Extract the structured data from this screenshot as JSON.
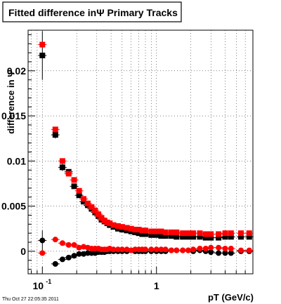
{
  "chart_data": {
    "type": "scatter",
    "title": "Fitted difference inΨ   Primary Tracks",
    "xlabel": "pT (GeV/c)",
    "ylabel": "difference in Ψ",
    "x_scale": "log",
    "xlim": [
      0.075,
      7.0
    ],
    "ylim": [
      -0.0025,
      0.0245
    ],
    "y_ticks": [
      0,
      0.005,
      0.01,
      0.015,
      0.02
    ],
    "y_tick_labels": [
      "0",
      "0.005",
      "0.01",
      "0.015",
      "0.02"
    ],
    "x_ticks": [
      0.1,
      1
    ],
    "x_tick_labels": [
      "10^-1",
      "1"
    ],
    "grid": true,
    "footer": "Thu Oct 27 22:05:35 2011",
    "series": [
      {
        "color": "#000000",
        "marker": "square",
        "x": [
          0.1,
          0.13,
          0.15,
          0.17,
          0.19,
          0.21,
          0.23,
          0.25,
          0.27,
          0.29,
          0.31,
          0.33,
          0.35,
          0.37,
          0.39,
          0.42,
          0.46,
          0.5,
          0.55,
          0.6,
          0.65,
          0.7,
          0.75,
          0.8,
          0.9,
          1.0,
          1.1,
          1.2,
          1.35,
          1.5,
          1.7,
          1.9,
          2.1,
          2.4,
          2.7,
          3.0,
          3.5,
          4.0,
          4.5,
          5.5,
          6.5
        ],
        "y": [
          0.0217,
          0.0129,
          0.0093,
          0.0088,
          0.0072,
          0.0062,
          0.0055,
          0.0051,
          0.0047,
          0.0043,
          0.0039,
          0.0035,
          0.0033,
          0.0031,
          0.0029,
          0.0027,
          0.0025,
          0.0024,
          0.0023,
          0.0022,
          0.0021,
          0.002,
          0.0019,
          0.0019,
          0.0018,
          0.0018,
          0.0017,
          0.0017,
          0.0017,
          0.0016,
          0.0016,
          0.0016,
          0.0016,
          0.0016,
          0.0015,
          0.0015,
          0.0015,
          0.0016,
          0.0016,
          0.0016,
          0.0016
        ],
        "yerr": [
          0.0027,
          0.0004,
          0.0004,
          0.0003,
          0.0002,
          0.0002,
          0.0001,
          0.0001,
          0.0001,
          0.0001,
          0.0001,
          0.0001,
          0.0001,
          0.0001,
          0.0001,
          0.0001,
          0.0001,
          0.0001,
          0.0001,
          0.0001,
          0.0001,
          0.0001,
          0.0001,
          0.0001,
          0.0001,
          0.0001,
          0.0001,
          0.0001,
          0.0001,
          0.0001,
          0.0001,
          0.0001,
          0.0001,
          0.0001,
          0.0001,
          0.0001,
          0.0001,
          0.0001,
          0.0001,
          0.0001,
          0.0001
        ]
      },
      {
        "color": "#ff0000",
        "marker": "square",
        "x": [
          0.1,
          0.13,
          0.15,
          0.17,
          0.19,
          0.21,
          0.23,
          0.25,
          0.27,
          0.29,
          0.31,
          0.33,
          0.35,
          0.37,
          0.39,
          0.42,
          0.46,
          0.5,
          0.55,
          0.6,
          0.65,
          0.7,
          0.75,
          0.8,
          0.9,
          1.0,
          1.1,
          1.2,
          1.35,
          1.5,
          1.7,
          1.9,
          2.1,
          2.4,
          2.7,
          3.0,
          3.5,
          4.0,
          4.5,
          5.5,
          6.5
        ],
        "y": [
          0.0229,
          0.0135,
          0.01,
          0.0086,
          0.0079,
          0.0067,
          0.0058,
          0.0053,
          0.0049,
          0.0045,
          0.0041,
          0.0037,
          0.0034,
          0.0032,
          0.0031,
          0.0029,
          0.0028,
          0.0027,
          0.0026,
          0.0025,
          0.0024,
          0.0024,
          0.0023,
          0.0023,
          0.0022,
          0.0022,
          0.0022,
          0.0021,
          0.0021,
          0.0021,
          0.002,
          0.002,
          0.002,
          0.002,
          0.0019,
          0.0019,
          0.0019,
          0.002,
          0.002,
          0.002,
          0.002
        ],
        "yerr": [
          0.0001,
          0.0001,
          0.0001,
          0.0001,
          0.0001,
          0.0001,
          0.0001,
          0.0001,
          0.0001,
          0.0001,
          0.0001,
          0.0001,
          0.0001,
          0.0001,
          0.0001,
          0.0001,
          0.0001,
          0.0001,
          0.0001,
          0.0001,
          0.0001,
          0.0001,
          0.0001,
          0.0001,
          0.0001,
          0.0001,
          0.0001,
          0.0001,
          0.0001,
          0.0001,
          0.0001,
          0.0001,
          0.0001,
          0.0001,
          0.0001,
          0.0001,
          0.0001,
          0.0001,
          0.0001,
          0.0001,
          0.0001
        ]
      },
      {
        "color": "#000000",
        "marker": "circle",
        "x": [
          0.1,
          0.13,
          0.15,
          0.17,
          0.19,
          0.21,
          0.23,
          0.25,
          0.27,
          0.29,
          0.31,
          0.33,
          0.35,
          0.37,
          0.39,
          0.42,
          0.46,
          0.5,
          0.55,
          0.6,
          0.65,
          0.7,
          0.75,
          0.8,
          0.9,
          1.0,
          1.1,
          1.2,
          1.35,
          1.5,
          1.7,
          1.9,
          2.1,
          2.4,
          2.7,
          3.0,
          3.5,
          4.0,
          4.5,
          5.5,
          6.5
        ],
        "y": [
          0.0012,
          -0.0014,
          -0.0009,
          -0.0007,
          -0.0005,
          -0.0003,
          -0.0003,
          -0.0002,
          -0.0002,
          -0.0002,
          -0.0001,
          -0.0001,
          -0.0001,
          0.0,
          0.0,
          0.0,
          0.0,
          0.0,
          0.0,
          0.0001,
          0.0,
          0.0,
          0.0,
          0.0,
          0.0,
          0.0,
          0.0,
          0.0,
          0.0001,
          0.0001,
          0.0001,
          0.0001,
          0.0,
          0.0001,
          0.0,
          -0.0001,
          -0.0002,
          -0.0002,
          -0.0002,
          0.0,
          0.0
        ],
        "yerr": [
          0.0011,
          0.0003,
          0.0002,
          0.0002,
          0.0001,
          0.0001,
          0.0001,
          0.0001,
          0.0001,
          0.0001,
          0.0001,
          0.0001,
          0.0001,
          0.0001,
          0.0001,
          0.0001,
          0.0001,
          0.0001,
          0.0001,
          0.0001,
          0.0001,
          0.0001,
          0.0001,
          0.0001,
          0.0001,
          0.0001,
          0.0001,
          0.0001,
          0.0001,
          0.0001,
          0.0001,
          0.0001,
          0.0001,
          0.0001,
          0.0001,
          0.0001,
          0.0001,
          0.0001,
          0.0001,
          0.0001,
          0.0001
        ]
      },
      {
        "color": "#ff0000",
        "marker": "circle",
        "x": [
          0.1,
          0.13,
          0.15,
          0.17,
          0.19,
          0.21,
          0.23,
          0.25,
          0.27,
          0.29,
          0.31,
          0.33,
          0.35,
          0.37,
          0.39,
          0.42,
          0.46,
          0.5,
          0.55,
          0.6,
          0.65,
          0.7,
          0.75,
          0.8,
          0.9,
          1.0,
          1.1,
          1.2,
          1.35,
          1.5,
          1.7,
          1.9,
          2.1,
          2.4,
          2.7,
          3.0,
          3.5,
          4.0,
          4.5,
          5.5,
          6.5
        ],
        "y": [
          -0.0002,
          0.0013,
          0.0009,
          0.0007,
          0.0007,
          0.0004,
          0.0005,
          0.0004,
          0.0003,
          0.0003,
          0.0003,
          0.0002,
          0.0002,
          0.0002,
          0.0003,
          0.0002,
          0.0002,
          0.0002,
          0.0002,
          0.0001,
          0.0002,
          0.0002,
          0.0002,
          0.0002,
          0.0002,
          0.0002,
          0.0002,
          0.0002,
          0.0001,
          0.0001,
          0.0001,
          0.0001,
          0.0002,
          0.0003,
          0.0003,
          0.0004,
          0.0004,
          0.0003,
          0.0003,
          0.0001,
          0.0001
        ],
        "yerr": [
          0.0001,
          0.0001,
          0.0001,
          0.0001,
          0.0001,
          0.0001,
          0.0001,
          0.0001,
          0.0001,
          0.0001,
          0.0001,
          0.0001,
          0.0001,
          0.0001,
          0.0001,
          0.0001,
          0.0001,
          0.0001,
          0.0001,
          0.0001,
          0.0001,
          0.0001,
          0.0001,
          0.0001,
          0.0001,
          0.0001,
          0.0001,
          0.0001,
          0.0001,
          0.0001,
          0.0001,
          0.0001,
          0.0001,
          0.0001,
          0.0001,
          0.0001,
          0.0001,
          0.0001,
          0.0001,
          0.0001,
          0.0001
        ]
      }
    ]
  }
}
